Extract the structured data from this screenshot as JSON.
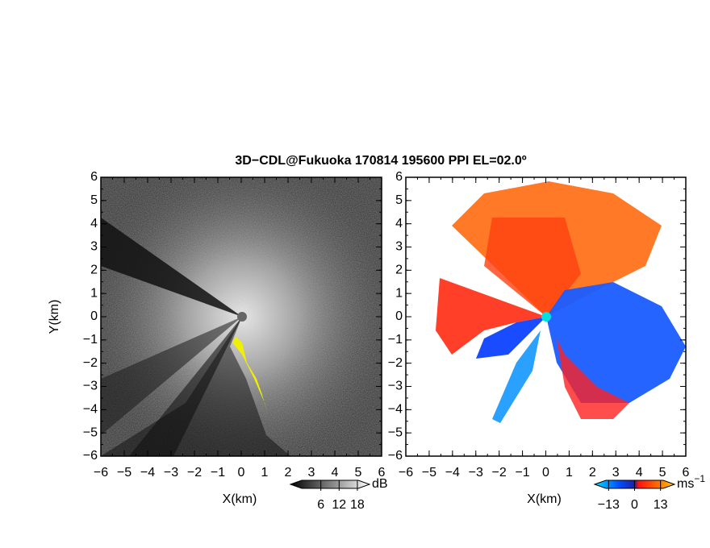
{
  "chart_data": [
    {
      "type": "image",
      "title": "3D−CDL@Fukuoka 170814 195600 PPI EL=02.0º",
      "xlabel": "X(km)",
      "ylabel": "Y(km)",
      "xlim": [
        -6,
        6
      ],
      "ylim": [
        -6,
        6
      ],
      "xticks": [
        {
          "value": -6,
          "label": "−6"
        },
        {
          "value": -5,
          "label": "−5"
        },
        {
          "value": -4,
          "label": "−4"
        },
        {
          "value": -3,
          "label": "−3"
        },
        {
          "value": -2,
          "label": "−2"
        },
        {
          "value": -1,
          "label": "−1"
        },
        0,
        1,
        2,
        3,
        4,
        5,
        6
      ],
      "yticks": [
        {
          "value": -6,
          "label": "−6"
        },
        {
          "value": -5,
          "label": "−5"
        },
        {
          "value": -4,
          "label": "−4"
        },
        {
          "value": -3,
          "label": "−3"
        },
        {
          "value": -2,
          "label": "−2"
        },
        {
          "value": -1,
          "label": "−1"
        },
        0,
        1,
        2,
        3,
        4,
        5,
        6
      ],
      "colorbar": {
        "unit": "dB",
        "clim": [
          -4,
          22
        ],
        "ticks": [
          6,
          12,
          18
        ]
      }
    },
    {
      "type": "image",
      "xlabel": "X(km)",
      "xlim": [
        -6,
        6
      ],
      "ylim": [
        -6,
        6
      ],
      "xticks": [
        {
          "value": -6,
          "label": "−6"
        },
        {
          "value": -5,
          "label": "−5"
        },
        {
          "value": -4,
          "label": "−4"
        },
        {
          "value": -3,
          "label": "−3"
        },
        {
          "value": -2,
          "label": "−2"
        },
        {
          "value": -1,
          "label": "−1"
        },
        0,
        1,
        2,
        3,
        4,
        5,
        6
      ],
      "yticks": [
        {
          "value": -6,
          "label": "−6"
        },
        {
          "value": -5,
          "label": "−5"
        },
        {
          "value": -4,
          "label": "−4"
        },
        {
          "value": -3,
          "label": "−3"
        },
        {
          "value": -2,
          "label": "−2"
        },
        {
          "value": -1,
          "label": "−1"
        },
        0,
        1,
        2,
        3,
        4,
        5,
        6
      ],
      "colorbar": {
        "unit": "ms",
        "unit_exponent": "−1",
        "clim": [
          -20,
          20
        ],
        "ticks": [
          {
            "value": -13,
            "label": "−13"
          },
          0,
          13
        ]
      }
    }
  ]
}
